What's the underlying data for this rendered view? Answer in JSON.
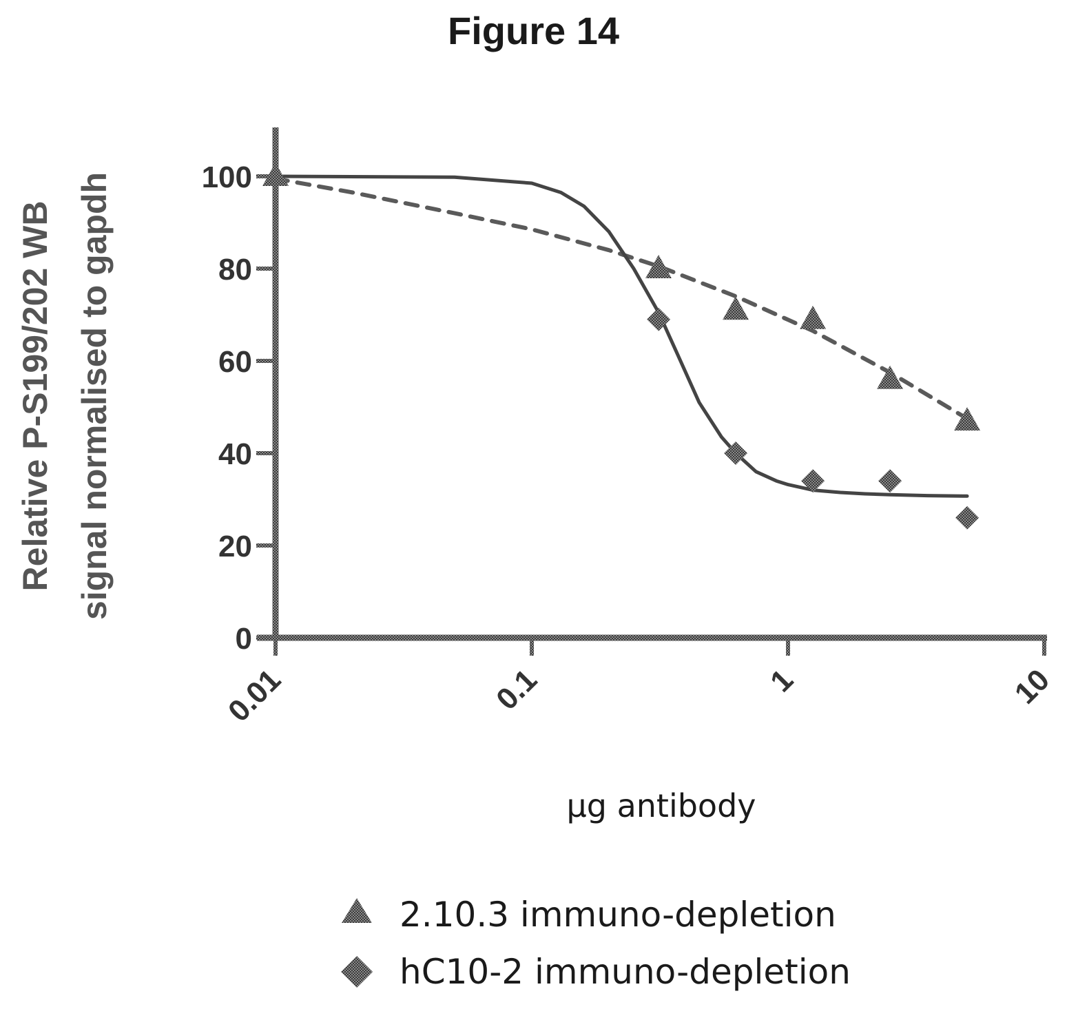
{
  "figure_label": "Figure 14",
  "chart_data": {
    "type": "scatter",
    "title": "Figure 14",
    "xlabel": "µg antibody",
    "ylabel_lines": [
      "Relative P-S199/202 WB",
      "signal normalised to gapdh"
    ],
    "x_scale": "log",
    "xlim": [
      0.01,
      10
    ],
    "ylim": [
      0,
      110
    ],
    "x_ticks": [
      0.01,
      0.1,
      1,
      10
    ],
    "x_tick_labels": [
      "0.01",
      "0.1",
      "1",
      "10"
    ],
    "y_ticks": [
      0,
      20,
      40,
      60,
      80,
      100
    ],
    "y_tick_labels": [
      "0",
      "20",
      "40",
      "60",
      "80",
      "100"
    ],
    "grid": false,
    "legend_position": "bottom",
    "series": [
      {
        "name": "2.10.3 immuno-depletion",
        "marker": "triangle",
        "line_style": "dashed",
        "color": "#444444",
        "x": [
          0.01,
          0.3125,
          0.625,
          1.25,
          2.5,
          5
        ],
        "y": [
          100,
          80,
          71,
          69,
          56,
          47
        ],
        "fit_x": [
          0.01,
          0.02,
          0.05,
          0.1,
          0.2,
          0.3125,
          0.625,
          1.25,
          2.5,
          5
        ],
        "fit_y": [
          99.5,
          96.5,
          92,
          88.5,
          84,
          80.5,
          74,
          66.5,
          57.5,
          47.5
        ]
      },
      {
        "name": "hC10-2 immuno-depletion",
        "marker": "diamond",
        "line_style": "solid",
        "color": "#444444",
        "x": [
          0.3125,
          0.625,
          1.25,
          2.5,
          5
        ],
        "y": [
          69,
          40,
          34,
          34,
          26
        ],
        "fit_x": [
          0.01,
          0.05,
          0.1,
          0.13,
          0.16,
          0.2,
          0.25,
          0.3125,
          0.37,
          0.45,
          0.55,
          0.625,
          0.75,
          0.9,
          1.0,
          1.25,
          1.6,
          2.0,
          2.5,
          3.5,
          5
        ],
        "fit_y": [
          100,
          99.8,
          98.5,
          96.5,
          93.5,
          88,
          80,
          70.5,
          61.5,
          51,
          43.5,
          40,
          36,
          34,
          33.2,
          32,
          31.5,
          31.2,
          31,
          30.8,
          30.7
        ]
      }
    ]
  }
}
